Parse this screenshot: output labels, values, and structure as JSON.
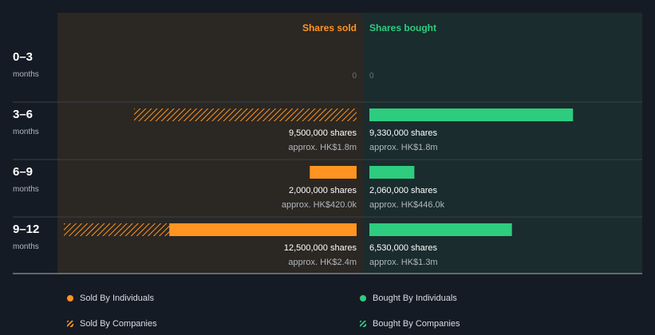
{
  "chart_data": {
    "type": "bar",
    "orientation": "horizontal-diverging",
    "columns": {
      "sold_label": "Shares sold",
      "bought_label": "Shares bought"
    },
    "periods": [
      {
        "label": "0–3",
        "unit": "months"
      },
      {
        "label": "3–6",
        "unit": "months"
      },
      {
        "label": "6–9",
        "unit": "months"
      },
      {
        "label": "9–12",
        "unit": "months"
      }
    ],
    "series": [
      {
        "name": "Sold By Individuals",
        "side": "sold",
        "style": "solid",
        "values": [
          0,
          0,
          2000000,
          8000000
        ]
      },
      {
        "name": "Sold By Companies",
        "side": "sold",
        "style": "hatched",
        "values": [
          0,
          9500000,
          0,
          4500000
        ]
      },
      {
        "name": "Bought By Individuals",
        "side": "bought",
        "style": "solid",
        "values": [
          0,
          9330000,
          2060000,
          6530000
        ]
      },
      {
        "name": "Bought By Companies",
        "side": "bought",
        "style": "hatched",
        "values": [
          0,
          0,
          0,
          0
        ]
      }
    ],
    "sold_totals": [
      "0",
      "9,500,000 shares",
      "2,000,000 shares",
      "12,500,000 shares"
    ],
    "sold_approx": [
      "",
      "approx. HK$1.8m",
      "approx. HK$420.0k",
      "approx. HK$2.4m"
    ],
    "bought_totals": [
      "0",
      "9,330,000 shares",
      "2,060,000 shares",
      "6,530,000 shares"
    ],
    "bought_approx": [
      "",
      "approx. HK$1.8m",
      "approx. HK$446.0k",
      "approx. HK$1.3m"
    ],
    "xlim": [
      0,
      12500000
    ]
  },
  "colors": {
    "background": "#151b24",
    "sold_panel": "#2b2723",
    "bought_panel": "#1a2c2d",
    "sold": "#ff9421",
    "bought": "#2ecc7f",
    "label_secondary": "#b0b6bd",
    "zero_label": "#6c7480"
  }
}
